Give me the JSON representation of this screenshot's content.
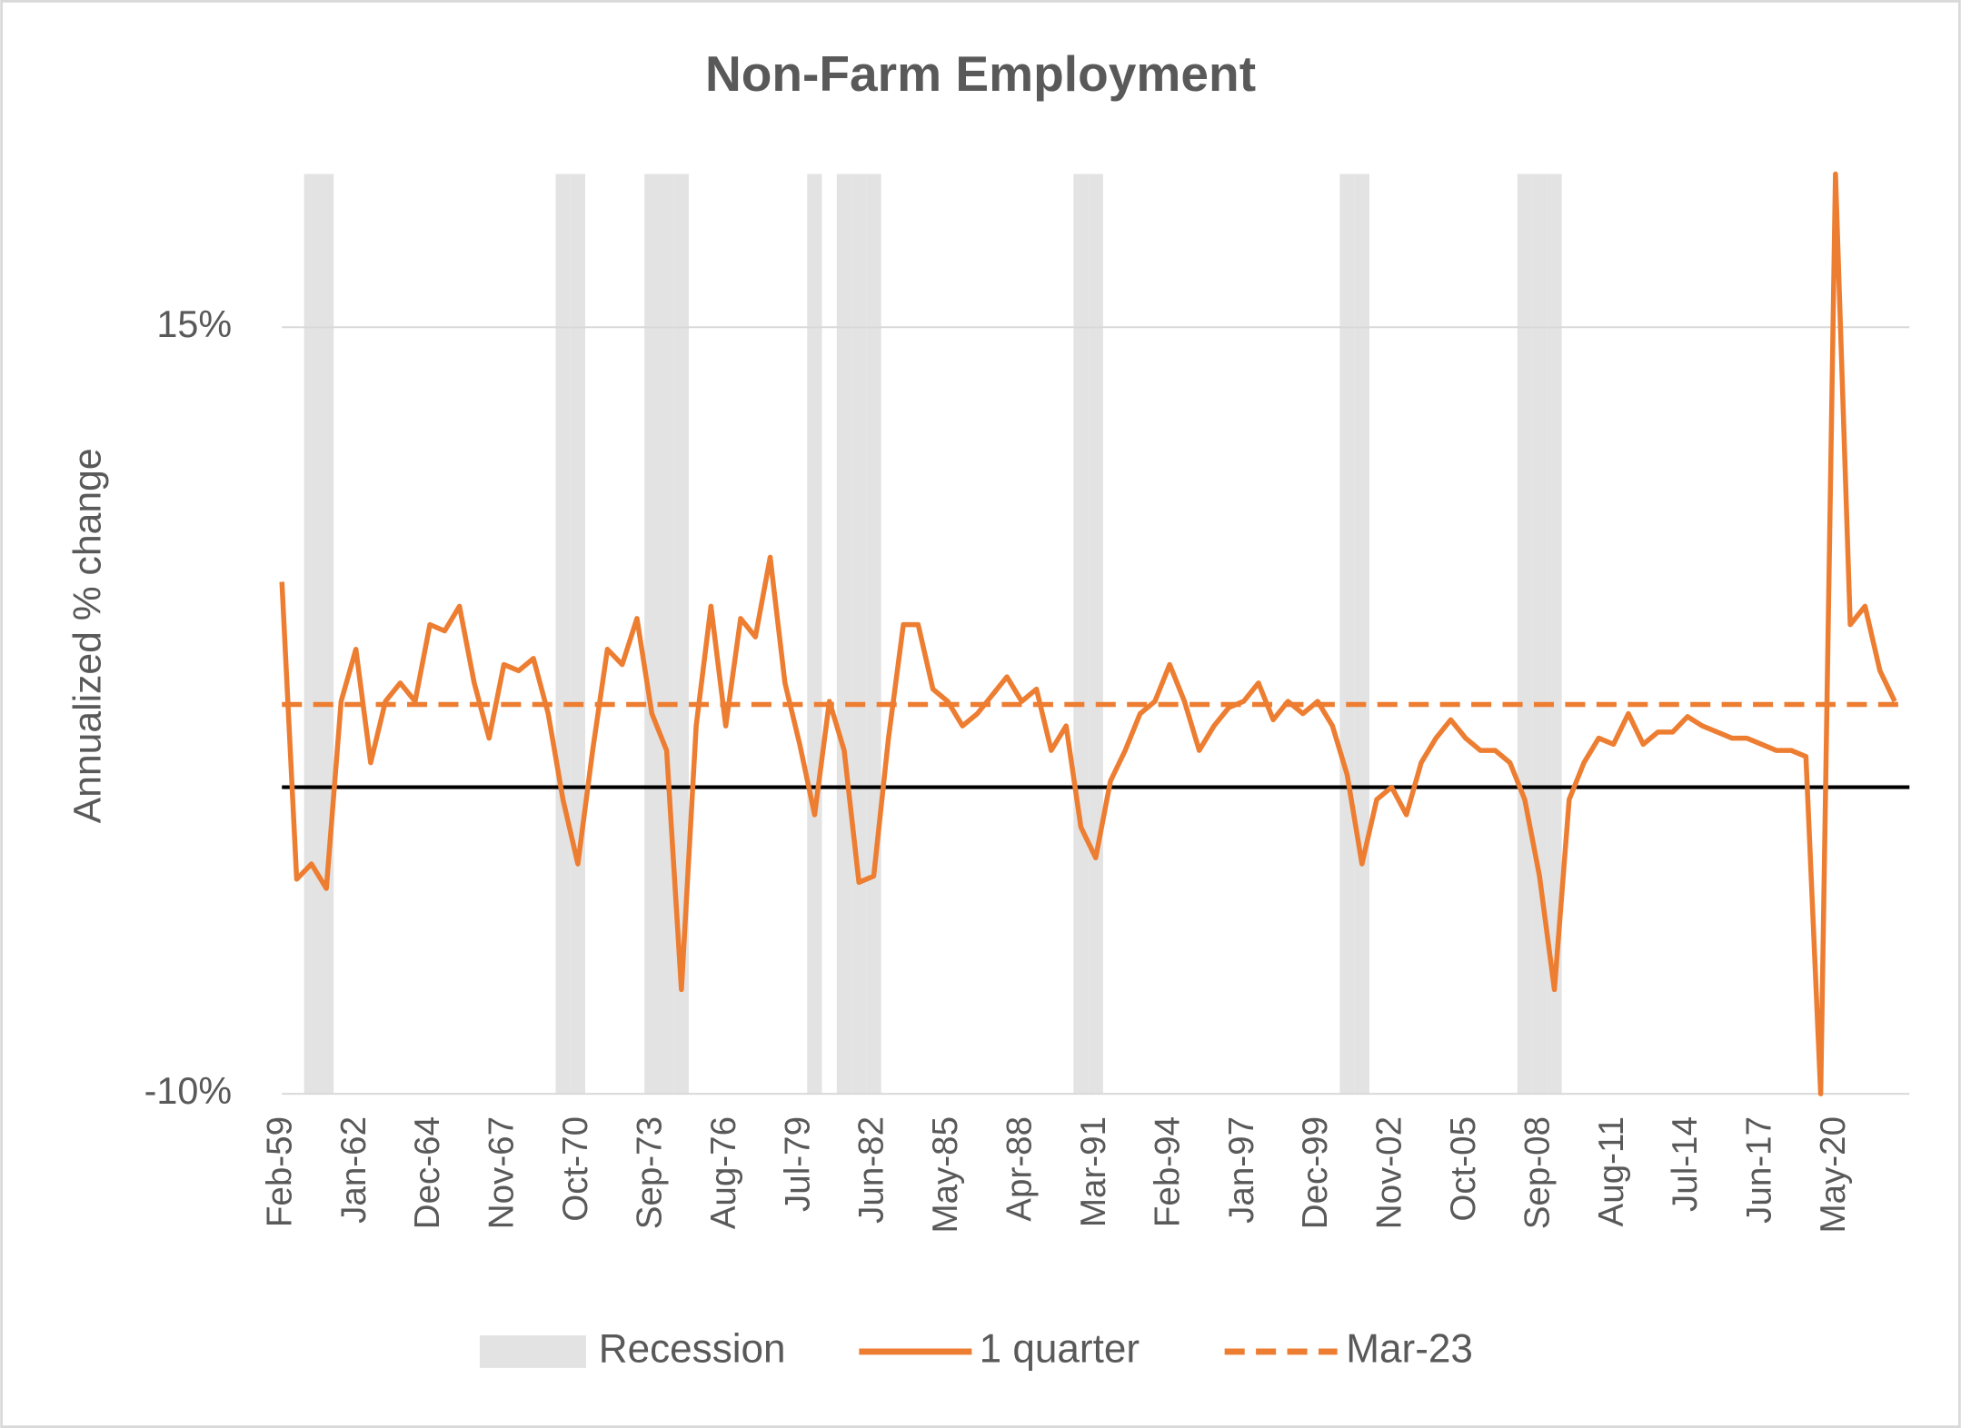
{
  "chart_data": {
    "type": "line",
    "title": "Non-Farm Employment",
    "y_axis_label": "Annualized % change",
    "categories": [
      "Feb-59",
      null,
      null,
      null,
      null,
      "Jan-62",
      null,
      null,
      null,
      null,
      "Dec-64",
      null,
      null,
      null,
      null,
      "Nov-67",
      null,
      null,
      null,
      null,
      "Oct-70",
      null,
      null,
      null,
      null,
      "Sep-73",
      null,
      null,
      null,
      null,
      "Aug-76",
      null,
      null,
      null,
      null,
      "Jul-79",
      null,
      null,
      null,
      null,
      "Jun-82",
      null,
      null,
      null,
      null,
      "May-85",
      null,
      null,
      null,
      null,
      "Apr-88",
      null,
      null,
      null,
      null,
      "Mar-91",
      null,
      null,
      null,
      null,
      "Feb-94",
      null,
      null,
      null,
      null,
      "Jan-97",
      null,
      null,
      null,
      null,
      "Dec-99",
      null,
      null,
      null,
      null,
      "Nov-02",
      null,
      null,
      null,
      null,
      "Oct-05",
      null,
      null,
      null,
      null,
      "Sep-08",
      null,
      null,
      null,
      null,
      "Aug-11",
      null,
      null,
      null,
      null,
      "Jul-14",
      null,
      null,
      null,
      null,
      "Jun-17",
      null,
      null,
      null,
      null,
      "May-20",
      null,
      null,
      null,
      null
    ],
    "series": [
      {
        "name": "Recession",
        "type": "bar",
        "axis": "y2",
        "color": "#e3e3e3",
        "values": [
          0,
          0,
          1,
          1,
          0,
          0,
          0,
          0,
          0,
          0,
          0,
          0,
          0,
          0,
          0,
          0,
          0,
          0,
          0,
          1,
          1,
          0,
          0,
          0,
          0,
          1,
          1,
          1,
          0,
          0,
          0,
          0,
          0,
          0,
          0,
          0,
          1,
          0,
          1,
          1,
          1,
          0,
          0,
          0,
          0,
          0,
          0,
          0,
          0,
          0,
          0,
          0,
          0,
          0,
          1,
          1,
          0,
          0,
          0,
          0,
          0,
          0,
          0,
          0,
          0,
          0,
          0,
          0,
          0,
          0,
          0,
          0,
          1,
          1,
          0,
          0,
          0,
          0,
          0,
          0,
          0,
          0,
          0,
          0,
          1,
          1,
          1,
          0,
          0,
          0,
          0,
          0,
          0,
          0,
          0,
          0,
          0,
          0,
          0,
          0,
          0,
          0,
          0,
          0,
          0,
          0,
          0,
          0,
          0,
          0
        ]
      },
      {
        "name": "1 quarter",
        "type": "line",
        "color": "#ed7d31",
        "values": [
          6.7,
          -3,
          -2.5,
          -3.3,
          2.8,
          4.5,
          0.8,
          2.8,
          3.4,
          2.8,
          5.3,
          5.1,
          5.9,
          3.4,
          1.6,
          4.0,
          3.8,
          4.2,
          2.4,
          -0.4,
          -2.5,
          1.2,
          4.5,
          4.0,
          5.5,
          2.4,
          1.2,
          -6.6,
          2.0,
          5.9,
          2.0,
          5.5,
          4.9,
          7.5,
          3.4,
          1.4,
          -0.9,
          2.8,
          1.2,
          -3.1,
          -2.9,
          1.6,
          5.3,
          5.3,
          3.2,
          2.8,
          2.0,
          2.4,
          3.0,
          3.6,
          2.8,
          3.2,
          1.2,
          2.0,
          -1.3,
          -2.3,
          0.2,
          1.2,
          2.4,
          2.8,
          4.0,
          2.8,
          1.2,
          2.0,
          2.6,
          2.8,
          3.4,
          2.2,
          2.8,
          2.4,
          2.8,
          2.0,
          0.4,
          -2.5,
          -0.4,
          0.0,
          -0.9,
          0.8,
          1.6,
          2.2,
          1.6,
          1.2,
          1.2,
          0.8,
          -0.4,
          -2.9,
          -6.6,
          -0.4,
          0.8,
          1.6,
          1.4,
          2.4,
          1.4,
          1.8,
          1.8,
          2.3,
          2.0,
          1.8,
          1.6,
          1.6,
          1.4,
          1.2,
          1.2,
          1.0,
          -10,
          20,
          5.3,
          5.9,
          3.8,
          2.8
        ]
      }
    ],
    "reference_line": {
      "name": "Mar-23",
      "value": 2.7,
      "color": "#ed7d31",
      "style": "dashed"
    },
    "ylim": [
      -10,
      20
    ],
    "yticks": [
      {
        "value": -10,
        "label": "-10%"
      },
      {
        "value": 15,
        "label": "15%"
      }
    ],
    "y2lim": [
      0,
      1
    ],
    "grid": true,
    "legend": "bottom"
  }
}
